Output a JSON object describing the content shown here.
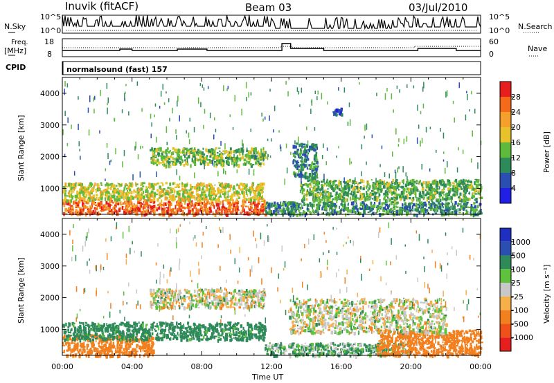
{
  "header": {
    "station": "Inuvik (fitACF)",
    "beam": "Beam 03",
    "date": "03/Jul/2010"
  },
  "noise_panel": {
    "left_label": "N.Sky",
    "right_label": "N.Search",
    "ticks": [
      "10^5",
      "10^0"
    ]
  },
  "freq_panel": {
    "left_label_1": "Freq.",
    "left_label_2": "[MHz]",
    "left_ticks": [
      "18",
      "8"
    ],
    "right_label": "Nave",
    "right_ticks": [
      "60",
      "0"
    ]
  },
  "cpid": {
    "label": "CPID",
    "program": "normalsound (fast) 157"
  },
  "colors": {
    "power_scale": [
      "#1f1fe6",
      "#2a4fb0",
      "#2f8a5a",
      "#5fba3c",
      "#e8c22a",
      "#f4a02a",
      "#f46a1a",
      "#e61e1e"
    ],
    "velocity_scale": [
      "#e61e1e",
      "#f2501a",
      "#f2801e",
      "#f6b04a",
      "#c8c8c8",
      "#5fc23c",
      "#2f8a5a",
      "#2a4fb0",
      "#1f2fc0"
    ]
  },
  "chart_data": [
    {
      "type": "heatmap",
      "name_on_chart": "Power [dB]",
      "xlabel": "Time UT",
      "ylabel": "Slant Range [km]",
      "x_ticks": [
        "00:00",
        "04:00",
        "08:00",
        "12:00",
        "16:00",
        "20:00",
        "00:00"
      ],
      "xlim_hours": [
        0,
        24
      ],
      "ylim_km": [
        180,
        4500
      ],
      "y_ticks": [
        1000,
        2000,
        3000,
        4000
      ],
      "colorbar": {
        "label": "Power [dB]",
        "ticks": [
          4,
          8,
          12,
          16,
          20,
          24,
          28
        ],
        "range": [
          0,
          32
        ]
      },
      "bands": [
        {
          "t_start": 0.0,
          "t_end": 11.6,
          "r_min": 200,
          "r_max": 650,
          "value": 26
        },
        {
          "t_start": 11.6,
          "t_end": 24.0,
          "r_min": 200,
          "r_max": 600,
          "value": 10
        },
        {
          "t_start": 0.0,
          "t_end": 11.5,
          "r_min": 650,
          "r_max": 1200,
          "value": 17
        },
        {
          "t_start": 13.6,
          "t_end": 24.0,
          "r_min": 650,
          "r_max": 1300,
          "value": 13
        },
        {
          "t_start": 5.0,
          "t_end": 11.6,
          "r_min": 1750,
          "r_max": 2300,
          "value": 14
        },
        {
          "t_start": 13.2,
          "t_end": 14.6,
          "r_min": 1350,
          "r_max": 2450,
          "value": 9
        },
        {
          "t_start": 15.5,
          "t_end": 16.0,
          "r_min": 3350,
          "r_max": 3550,
          "value": 5
        }
      ]
    },
    {
      "type": "heatmap",
      "name_on_chart": "Velocity [m s-1]",
      "xlabel": "Time UT",
      "ylabel": "Slant Range [km]",
      "x_ticks": [
        "00:00",
        "04:00",
        "08:00",
        "12:00",
        "16:00",
        "20:00",
        "00:00"
      ],
      "xlim_hours": [
        0,
        24
      ],
      "ylim_km": [
        180,
        4500
      ],
      "y_ticks": [
        1000,
        2000,
        3000,
        4000
      ],
      "colorbar": {
        "label": "Velocity [m s⁻¹]",
        "ticks": [
          1000,
          500,
          100,
          25,
          -25,
          -100,
          -500,
          -1000
        ]
      },
      "bands": [
        {
          "t_start": 0.0,
          "t_end": 5.2,
          "r_min": 200,
          "r_max": 850,
          "value": -150
        },
        {
          "t_start": 0.0,
          "t_end": 11.6,
          "r_min": 700,
          "r_max": 1250,
          "value": 120
        },
        {
          "t_start": 5.0,
          "t_end": 11.6,
          "r_min": 1700,
          "r_max": 2300,
          "value": 0
        },
        {
          "t_start": 11.6,
          "t_end": 20.0,
          "r_min": 200,
          "r_max": 600,
          "value": 60
        },
        {
          "t_start": 18.0,
          "t_end": 24.0,
          "r_min": 200,
          "r_max": 1000,
          "value": -150
        },
        {
          "t_start": 13.0,
          "t_end": 22.0,
          "r_min": 900,
          "r_max": 2000,
          "value": 0
        }
      ]
    }
  ]
}
